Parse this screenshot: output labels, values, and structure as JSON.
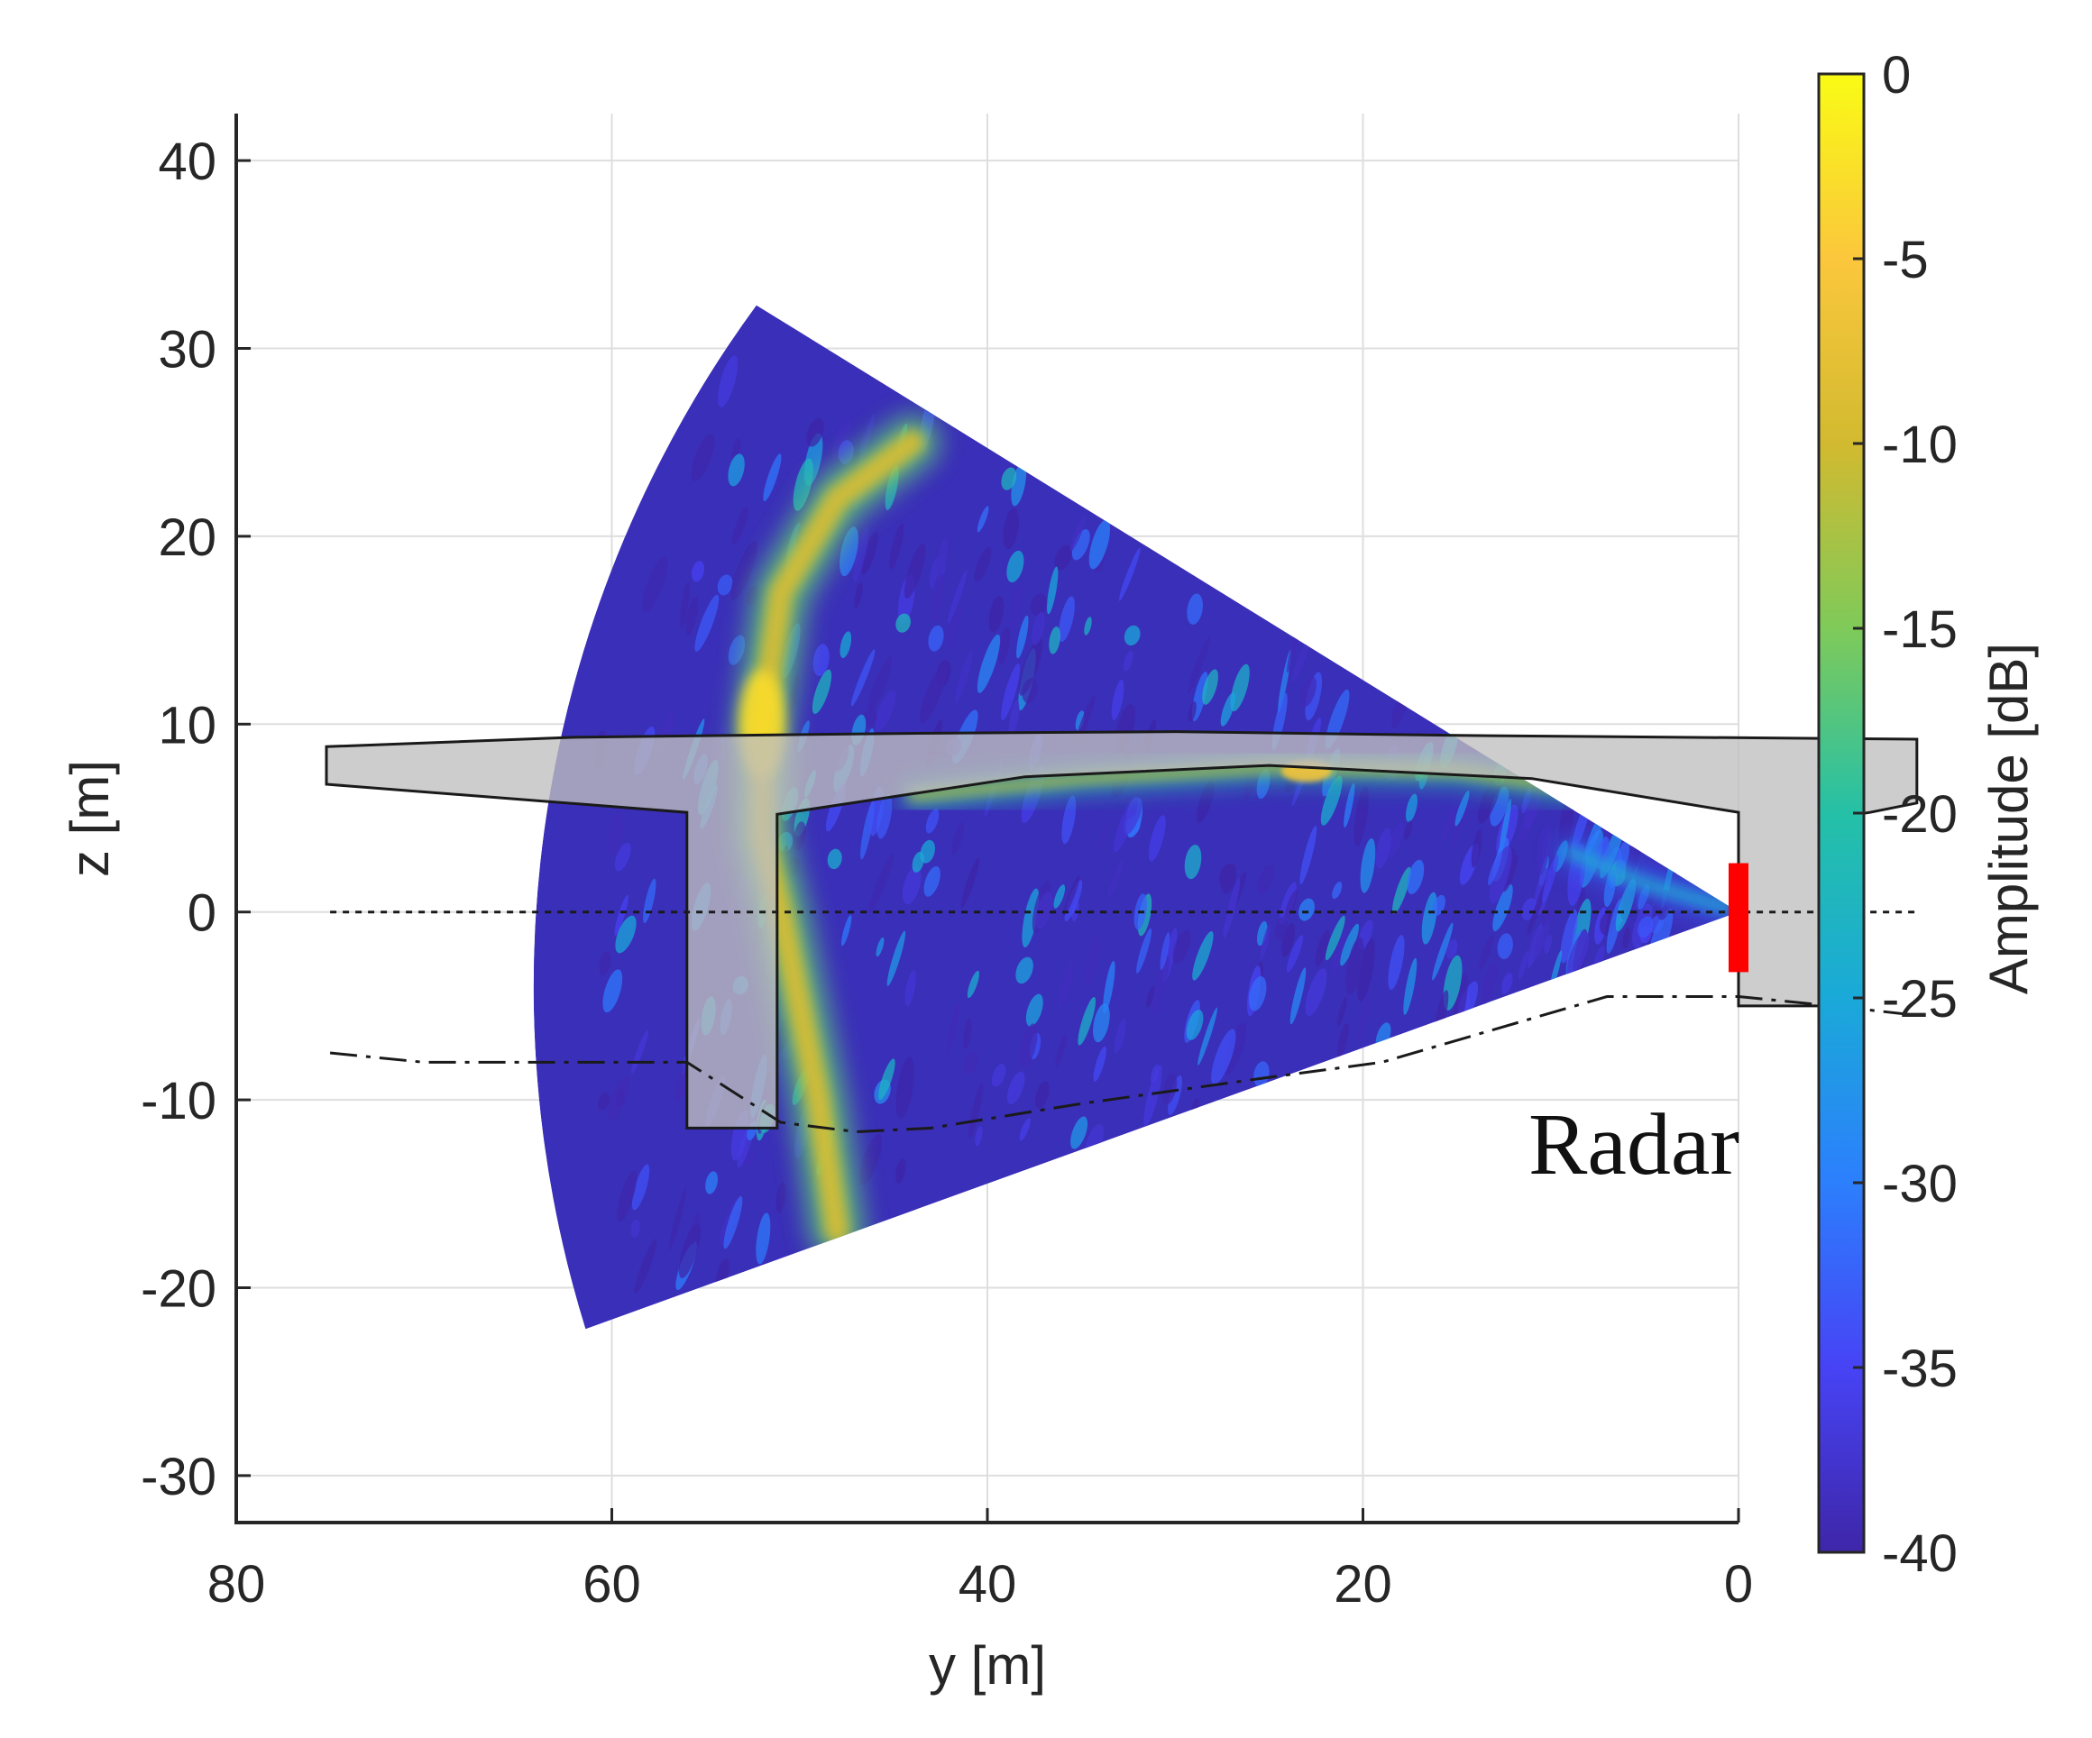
{
  "chart_data": {
    "type": "heatmap",
    "title": "",
    "xlabel": "y [m]",
    "ylabel": "z [m]",
    "xlim": [
      80,
      0
    ],
    "ylim": [
      -32.5,
      42.5
    ],
    "x_ticks": [
      80,
      60,
      40,
      20,
      0
    ],
    "y_ticks": [
      40,
      30,
      20,
      10,
      0,
      -10,
      -20,
      -30
    ],
    "grid": true,
    "annotation": "Radar",
    "colorbar": {
      "label": "Amplitude [dB]",
      "range": [
        -40,
        0
      ],
      "ticks": [
        0,
        -5,
        -10,
        -15,
        -20,
        -25,
        -30,
        -35,
        -40
      ],
      "colormap": [
        "#3e26a8",
        "#4743f5",
        "#2c7ffd",
        "#1aa9d8",
        "#25c0a7",
        "#7fca59",
        "#d2ba30",
        "#fbc73c",
        "#f9fb15"
      ]
    },
    "radar": {
      "position": [
        0,
        0
      ],
      "marker_z_range": [
        -3.2,
        2.6
      ],
      "marker_color": "#ff0000"
    },
    "sector": {
      "apex": [
        0,
        0
      ],
      "edge_1_end": [
        52.3,
        32.3
      ],
      "edge_2_end": [
        61.4,
        -22.2
      ],
      "background_color": "#3a2fb8"
    },
    "bright_features": [
      {
        "name": "far pier reflection band",
        "points": [
          [
            44,
            25
          ],
          [
            48,
            22
          ],
          [
            51,
            17
          ],
          [
            52,
            10
          ],
          [
            52,
            4
          ],
          [
            51,
            0
          ],
          [
            50,
            -5
          ],
          [
            49,
            -10
          ],
          [
            48,
            -17
          ]
        ],
        "peak_db": -3
      },
      {
        "name": "deck underside reflection",
        "points": [
          [
            44,
            6.2
          ],
          [
            35,
            7.1
          ],
          [
            25,
            7.7
          ],
          [
            15,
            7.5
          ],
          [
            8,
            6.5
          ]
        ],
        "peak_db": -6
      },
      {
        "name": "near-radar diagonal echo",
        "points": [
          [
            0.5,
            0.2
          ],
          [
            5,
            1.5
          ],
          [
            9,
            3.2
          ]
        ],
        "peak_db": -18
      }
    ],
    "bridge_outline": {
      "fill": "#bfbfbf",
      "polygon": [
        [
          75.2,
          8.8
        ],
        [
          62,
          9.3
        ],
        [
          45,
          9.5
        ],
        [
          30,
          9.6
        ],
        [
          15,
          9.4
        ],
        [
          -9.5,
          9.2
        ],
        [
          -9.5,
          5.8
        ],
        [
          -7,
          5.3
        ],
        [
          -5,
          5.0
        ],
        [
          -5,
          -5.0
        ],
        [
          0,
          -5.0
        ],
        [
          0,
          5.3
        ],
        [
          11,
          7.1
        ],
        [
          25,
          7.8
        ],
        [
          38,
          7.2
        ],
        [
          51.2,
          5.2
        ],
        [
          51.2,
          -11.5
        ],
        [
          56.0,
          -11.5
        ],
        [
          56.0,
          5.3
        ],
        [
          75.2,
          6.8
        ]
      ]
    },
    "reference_lines": [
      {
        "name": "water level",
        "style": "dotted",
        "points": [
          [
            75,
            0
          ],
          [
            -9.5,
            0
          ]
        ]
      },
      {
        "name": "river bed",
        "style": "dash-dot",
        "points": [
          [
            75,
            -7.5
          ],
          [
            70,
            -8.0
          ],
          [
            56,
            -8.0
          ],
          [
            51,
            -11.2
          ],
          [
            47,
            -11.7
          ],
          [
            43,
            -11.5
          ],
          [
            35,
            -10.2
          ],
          [
            25,
            -8.8
          ],
          [
            19,
            -8.0
          ],
          [
            7,
            -4.5
          ],
          [
            0,
            -4.5
          ],
          [
            -5,
            -5.0
          ],
          [
            -9.5,
            -5.5
          ]
        ]
      }
    ]
  }
}
